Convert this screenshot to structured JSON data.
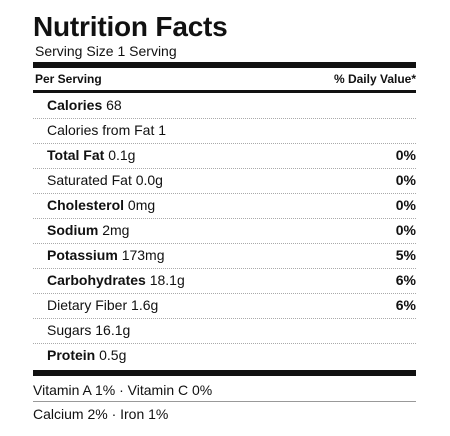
{
  "title": "Nutrition Facts",
  "serving": "Serving Size 1 Serving",
  "header": {
    "per_serving": "Per Serving",
    "daily_value": "% Daily Value*"
  },
  "rows": [
    {
      "label": "Calories",
      "value": "68",
      "pct": "",
      "bold": true
    },
    {
      "label": "Calories from Fat",
      "value": "1",
      "pct": "",
      "bold": false
    },
    {
      "label": "Total Fat",
      "value": "0.1g",
      "pct": "0%",
      "bold": true
    },
    {
      "label": "Saturated Fat",
      "value": "0.0g",
      "pct": "0%",
      "bold": false
    },
    {
      "label": "Cholesterol",
      "value": "0mg",
      "pct": "0%",
      "bold": true
    },
    {
      "label": "Sodium",
      "value": "2mg",
      "pct": "0%",
      "bold": true
    },
    {
      "label": "Potassium",
      "value": "173mg",
      "pct": "5%",
      "bold": true
    },
    {
      "label": "Carbohydrates",
      "value": "18.1g",
      "pct": "6%",
      "bold": true
    },
    {
      "label": "Dietary Fiber",
      "value": "1.6g",
      "pct": "6%",
      "bold": false
    },
    {
      "label": "Sugars",
      "value": "16.1g",
      "pct": "",
      "bold": false
    },
    {
      "label": "Protein",
      "value": "0.5g",
      "pct": "",
      "bold": true
    }
  ],
  "vitamins": {
    "line1": "Vitamin A 1% · Vitamin C 0%",
    "line2": "Calcium 2% · Iron 1%"
  }
}
